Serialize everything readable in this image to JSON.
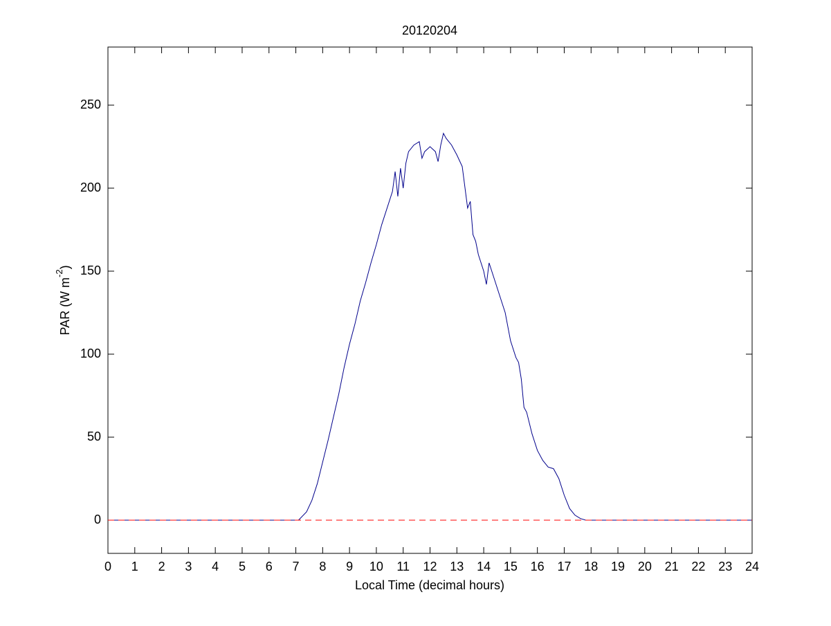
{
  "chart_data": {
    "type": "line",
    "title": "20120204",
    "xlabel": "Local Time (decimal hours)",
    "ylabel": [
      "PAR (W m",
      "-2",
      ")"
    ],
    "xlim": [
      0,
      24
    ],
    "xticks": [
      0,
      1,
      2,
      3,
      4,
      5,
      6,
      7,
      8,
      9,
      10,
      11,
      12,
      13,
      14,
      15,
      16,
      17,
      18,
      19,
      20,
      21,
      22,
      23,
      24
    ],
    "ylim": [
      -20,
      285
    ],
    "yticks": [
      0,
      50,
      100,
      150,
      200,
      250
    ],
    "grid": false,
    "series": [
      {
        "color": "#00008b",
        "dash": false,
        "x": [
          0,
          7.1,
          7.4,
          7.6,
          7.8,
          8.0,
          8.2,
          8.4,
          8.6,
          8.8,
          9.0,
          9.2,
          9.4,
          9.6,
          9.8,
          10.0,
          10.2,
          10.4,
          10.6,
          10.7,
          10.8,
          10.9,
          11.0,
          11.1,
          11.2,
          11.4,
          11.6,
          11.7,
          11.8,
          12.0,
          12.2,
          12.3,
          12.4,
          12.5,
          12.6,
          12.8,
          13.0,
          13.2,
          13.4,
          13.5,
          13.6,
          13.7,
          13.8,
          14.0,
          14.1,
          14.2,
          14.4,
          14.6,
          14.8,
          15.0,
          15.2,
          15.3,
          15.4,
          15.5,
          15.6,
          15.8,
          16.0,
          16.2,
          16.4,
          16.6,
          16.8,
          17.0,
          17.2,
          17.4,
          17.6,
          17.8,
          24
        ],
        "values": [
          0,
          0,
          5,
          12,
          22,
          35,
          48,
          62,
          76,
          92,
          106,
          118,
          132,
          143,
          155,
          166,
          178,
          188,
          198,
          210,
          195,
          212,
          200,
          215,
          222,
          226,
          228,
          218,
          222,
          225,
          222,
          216,
          226,
          233,
          230,
          226,
          220,
          213,
          188,
          192,
          172,
          168,
          160,
          150,
          142,
          155,
          145,
          135,
          125,
          108,
          98,
          95,
          85,
          68,
          65,
          52,
          42,
          36,
          32,
          31,
          25,
          15,
          7,
          3,
          1,
          0,
          0
        ]
      },
      {
        "color": "#ff0000",
        "dash": true,
        "x": [
          0,
          24
        ],
        "values": [
          0,
          0
        ]
      }
    ]
  }
}
